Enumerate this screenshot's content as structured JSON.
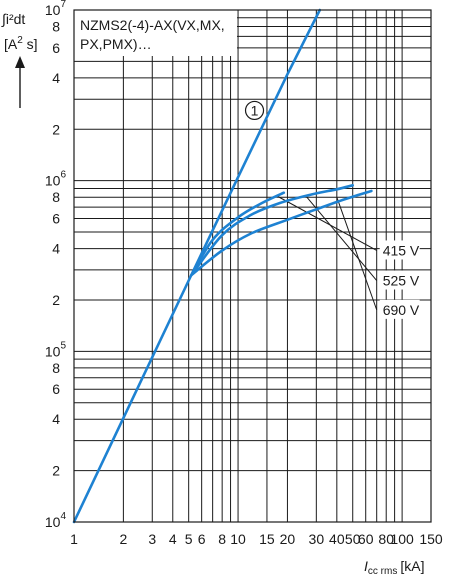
{
  "chart_data": {
    "type": "line",
    "title_lines": [
      "NZMS2(-4)-AX(VX,MX,",
      "PX,PMX)…"
    ],
    "ylabel": {
      "integral": "∫i²dt",
      "unit_open": "[A",
      "unit_sup": "2",
      "unit_close": " s]"
    },
    "xlabel": {
      "symbol": "I",
      "subscript": "cc rms",
      "unit": "[kA]"
    },
    "x_scale": "log",
    "y_scale": "log",
    "xlim": [
      1,
      150
    ],
    "ylim": [
      10000,
      10000000
    ],
    "x_ticks": [
      {
        "value": 1,
        "label": "1"
      },
      {
        "value": 2,
        "label": "2"
      },
      {
        "value": 3,
        "label": "3"
      },
      {
        "value": 4,
        "label": "4"
      },
      {
        "value": 5,
        "label": "5"
      },
      {
        "value": 6,
        "label": "6"
      },
      {
        "value": 8,
        "label": "8"
      },
      {
        "value": 10,
        "label": "10"
      },
      {
        "value": 15,
        "label": "15"
      },
      {
        "value": 20,
        "label": "20"
      },
      {
        "value": 30,
        "label": "30"
      },
      {
        "value": 40,
        "label": "40"
      },
      {
        "value": 50,
        "label": "50"
      },
      {
        "value": 60,
        "label": "60"
      },
      {
        "value": 80,
        "label": "80"
      },
      {
        "value": 100,
        "label": "100"
      },
      {
        "value": 150,
        "label": "150"
      }
    ],
    "x_grid": [
      1,
      2,
      3,
      4,
      5,
      6,
      7,
      8,
      9,
      10,
      15,
      20,
      30,
      40,
      50,
      60,
      70,
      80,
      90,
      100,
      150
    ],
    "y_ticks": [
      {
        "value": 10000,
        "base": "10",
        "exp": "4"
      },
      {
        "value": 20000,
        "label": "2"
      },
      {
        "value": 40000,
        "label": "4"
      },
      {
        "value": 60000,
        "label": "6"
      },
      {
        "value": 80000,
        "label": "8"
      },
      {
        "value": 100000,
        "base": "10",
        "exp": "5"
      },
      {
        "value": 200000,
        "label": "2"
      },
      {
        "value": 400000,
        "label": "4"
      },
      {
        "value": 600000,
        "label": "6"
      },
      {
        "value": 800000,
        "label": "8"
      },
      {
        "value": 1000000,
        "base": "10",
        "exp": "6"
      },
      {
        "value": 2000000,
        "label": "2"
      },
      {
        "value": 4000000,
        "label": "4"
      },
      {
        "value": 6000000,
        "label": "6"
      },
      {
        "value": 8000000,
        "label": "8"
      },
      {
        "value": 10000000,
        "base": "10",
        "exp": "7"
      }
    ],
    "y_grid": [
      10000,
      20000,
      30000,
      40000,
      50000,
      60000,
      70000,
      80000,
      90000,
      100000,
      200000,
      300000,
      400000,
      500000,
      600000,
      700000,
      800000,
      900000,
      1000000,
      2000000,
      3000000,
      4000000,
      5000000,
      6000000,
      7000000,
      8000000,
      9000000,
      10000000
    ],
    "series": [
      {
        "id": "s1",
        "name": "1",
        "marker": "circle",
        "x": [
          1,
          5,
          10,
          20,
          31.5
        ],
        "y": [
          10000,
          260000,
          1050000,
          4200000,
          10000000
        ],
        "label_at": {
          "x": 12.6,
          "y": 2580000
        }
      },
      {
        "id": "415",
        "name": "415 V",
        "x": [
          5.2,
          7,
          10,
          14,
          19
        ],
        "y": [
          280000,
          450000,
          610000,
          740000,
          850000
        ]
      },
      {
        "id": "525",
        "name": "525 V",
        "x": [
          5.2,
          8,
          12,
          18,
          28,
          40,
          50
        ],
        "y": [
          280000,
          480000,
          630000,
          740000,
          830000,
          890000,
          940000
        ]
      },
      {
        "id": "690",
        "name": "690 V",
        "x": [
          5.2,
          8,
          12,
          20,
          30,
          45,
          65
        ],
        "y": [
          280000,
          390000,
          490000,
          590000,
          680000,
          780000,
          870000
        ]
      }
    ],
    "annotations": [
      {
        "text": "415 V",
        "from": {
          "x": 17,
          "y": 820000
        },
        "to": {
          "x": 70,
          "y": 390000
        }
      },
      {
        "text": "525 V",
        "from": {
          "x": 26,
          "y": 810000
        },
        "to": {
          "x": 70,
          "y": 260000
        }
      },
      {
        "text": "690 V",
        "from": {
          "x": 40,
          "y": 800000
        },
        "to": {
          "x": 70,
          "y": 175000
        }
      }
    ],
    "colors": {
      "series": "#1e82d2",
      "grid": "#1a1a1a"
    },
    "grid": true,
    "legend": "none"
  }
}
